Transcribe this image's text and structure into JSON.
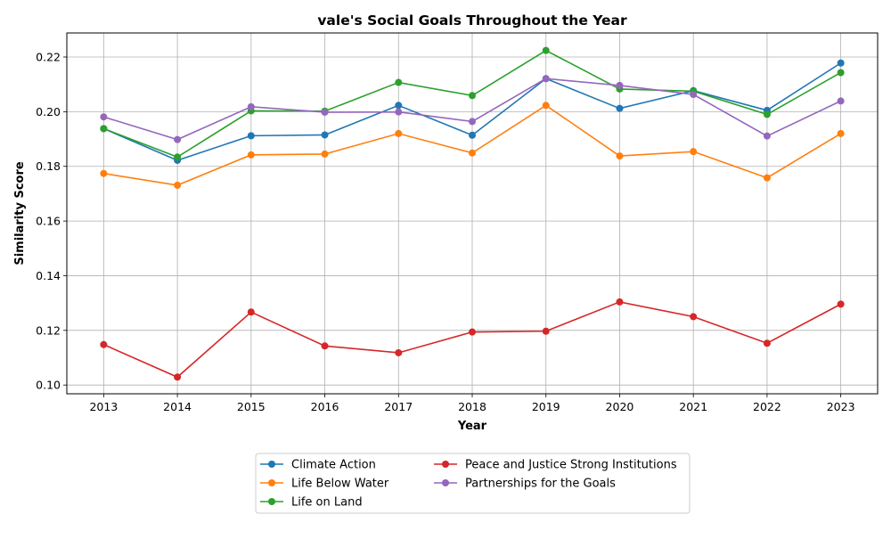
{
  "chart_data": {
    "type": "line",
    "title": "vale's Social Goals Throughout the Year",
    "xlabel": "Year",
    "ylabel": "Similarity Score",
    "x": [
      2013,
      2014,
      2015,
      2016,
      2017,
      2018,
      2019,
      2020,
      2021,
      2022,
      2023
    ],
    "xlim": [
      2012.5,
      2023.5
    ],
    "ylim": [
      0.0968,
      0.2288
    ],
    "yticks": [
      0.1,
      0.12,
      0.14,
      0.16,
      0.18,
      0.2,
      0.22
    ],
    "ytick_labels": [
      "0.10",
      "0.12",
      "0.14",
      "0.16",
      "0.18",
      "0.20",
      "0.22"
    ],
    "grid": true,
    "legend_position": "bottom-center, below plot",
    "series": [
      {
        "name": "Climate Action",
        "color": "#1f77b4",
        "values": [
          0.1938,
          0.1822,
          0.1912,
          0.1915,
          0.2023,
          0.1914,
          0.2121,
          0.2012,
          0.2077,
          0.2005,
          0.2178
        ]
      },
      {
        "name": "Life Below Water",
        "color": "#ff7f0e",
        "values": [
          0.1774,
          0.1731,
          0.1842,
          0.1845,
          0.192,
          0.1849,
          0.2023,
          0.1838,
          0.1854,
          0.1758,
          0.192
        ]
      },
      {
        "name": "Life on Land",
        "color": "#2ca02c",
        "values": [
          0.1938,
          0.1834,
          0.2003,
          0.2002,
          0.2107,
          0.2059,
          0.2224,
          0.2083,
          0.2075,
          0.199,
          0.2143
        ]
      },
      {
        "name": "Peace and Justice Strong Institutions",
        "color": "#d62728",
        "values": [
          0.1148,
          0.1029,
          0.1267,
          0.1143,
          0.1118,
          0.1194,
          0.1197,
          0.1304,
          0.125,
          0.1153,
          0.1296
        ]
      },
      {
        "name": "Partnerships for the Goals",
        "color": "#9467bd",
        "values": [
          0.1981,
          0.1898,
          0.2018,
          0.1998,
          0.1999,
          0.1964,
          0.2121,
          0.2096,
          0.2063,
          0.1911,
          0.2039
        ]
      }
    ]
  }
}
